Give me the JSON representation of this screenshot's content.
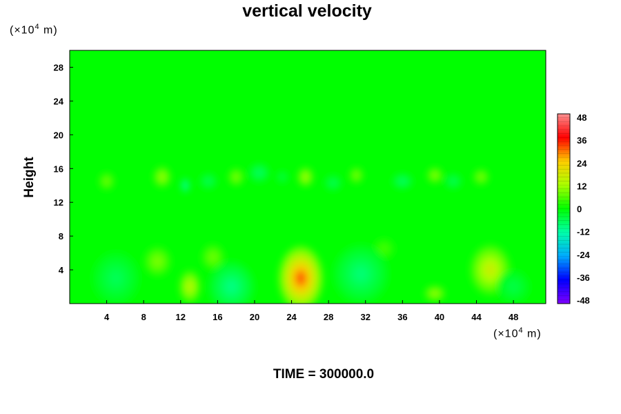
{
  "chart_data": {
    "type": "heatmap",
    "title": "vertical velocity",
    "ylabel": "Height",
    "xunit_prefix": "(×10",
    "xunit_exp": "4",
    "xunit_suffix": " m)",
    "yunit_prefix": "(×10",
    "yunit_exp": "4",
    "yunit_suffix": " m)",
    "x_ticks": [
      "4",
      "8",
      "12",
      "16",
      "20",
      "24",
      "28",
      "32",
      "36",
      "40",
      "44",
      "48"
    ],
    "y_ticks": [
      "4",
      "8",
      "12",
      "16",
      "20",
      "24",
      "28"
    ],
    "xlim": [
      0,
      51.5
    ],
    "ylim": [
      0,
      30
    ],
    "colorbar_ticks": [
      "48",
      "36",
      "24",
      "12",
      "0",
      "-12",
      "-24",
      "-36",
      "-48"
    ],
    "colorbar_range": [
      -48,
      48
    ],
    "colormap": [
      "#7f00ff",
      "#0000ff",
      "#00aaff",
      "#00ffaa",
      "#00ff00",
      "#aaff00",
      "#ffcc00",
      "#ff0000",
      "#ff9090"
    ],
    "background_value": 0,
    "features": [
      {
        "x": 25.0,
        "y": 3.0,
        "value": 30,
        "rx": 2.4,
        "ry": 3.8
      },
      {
        "x": 45.5,
        "y": 4.0,
        "value": 16,
        "rx": 2.2,
        "ry": 3.0
      },
      {
        "x": 13.0,
        "y": 2.0,
        "value": 14,
        "rx": 1.2,
        "ry": 2.0
      },
      {
        "x": 9.5,
        "y": 5.0,
        "value": 9,
        "rx": 1.5,
        "ry": 1.8
      },
      {
        "x": 15.5,
        "y": 5.5,
        "value": 8,
        "rx": 1.3,
        "ry": 1.6
      },
      {
        "x": 39.5,
        "y": 1.2,
        "value": 11,
        "rx": 1.2,
        "ry": 1.0
      },
      {
        "x": 34.0,
        "y": 6.5,
        "value": 5,
        "rx": 1.2,
        "ry": 1.3
      },
      {
        "x": 17.5,
        "y": 2.0,
        "value": -9,
        "rx": 2.5,
        "ry": 3.0
      },
      {
        "x": 31.5,
        "y": 3.5,
        "value": -8,
        "rx": 3.0,
        "ry": 3.5
      },
      {
        "x": 5.0,
        "y": 3.0,
        "value": -6,
        "rx": 2.6,
        "ry": 3.2
      },
      {
        "x": 48.0,
        "y": 2.0,
        "value": -5,
        "rx": 1.8,
        "ry": 2.0
      },
      {
        "x": 10.0,
        "y": 15.0,
        "value": 11,
        "rx": 1.0,
        "ry": 1.3
      },
      {
        "x": 18.0,
        "y": 15.0,
        "value": 9,
        "rx": 0.9,
        "ry": 1.1
      },
      {
        "x": 25.5,
        "y": 15.0,
        "value": 12,
        "rx": 0.9,
        "ry": 1.2
      },
      {
        "x": 31.0,
        "y": 15.2,
        "value": 9,
        "rx": 0.8,
        "ry": 1.0
      },
      {
        "x": 39.5,
        "y": 15.2,
        "value": 10,
        "rx": 0.9,
        "ry": 1.0
      },
      {
        "x": 44.5,
        "y": 15.0,
        "value": 9,
        "rx": 0.9,
        "ry": 1.0
      },
      {
        "x": 4.0,
        "y": 14.5,
        "value": 8,
        "rx": 0.9,
        "ry": 1.1
      },
      {
        "x": 12.5,
        "y": 14.0,
        "value": -12,
        "rx": 0.5,
        "ry": 0.9
      },
      {
        "x": 20.5,
        "y": 15.5,
        "value": -7,
        "rx": 1.2,
        "ry": 1.2
      },
      {
        "x": 36.0,
        "y": 14.5,
        "value": -7,
        "rx": 1.2,
        "ry": 1.0
      },
      {
        "x": 15.0,
        "y": 14.5,
        "value": -6,
        "rx": 1.0,
        "ry": 1.0
      },
      {
        "x": 28.5,
        "y": 14.3,
        "value": -6,
        "rx": 1.0,
        "ry": 1.0
      },
      {
        "x": 41.5,
        "y": 14.5,
        "value": -6,
        "rx": 1.0,
        "ry": 1.0
      },
      {
        "x": 23.0,
        "y": 15.0,
        "value": -5,
        "rx": 0.7,
        "ry": 0.8
      }
    ]
  },
  "footer": {
    "time_label": "TIME = 300000.0"
  }
}
